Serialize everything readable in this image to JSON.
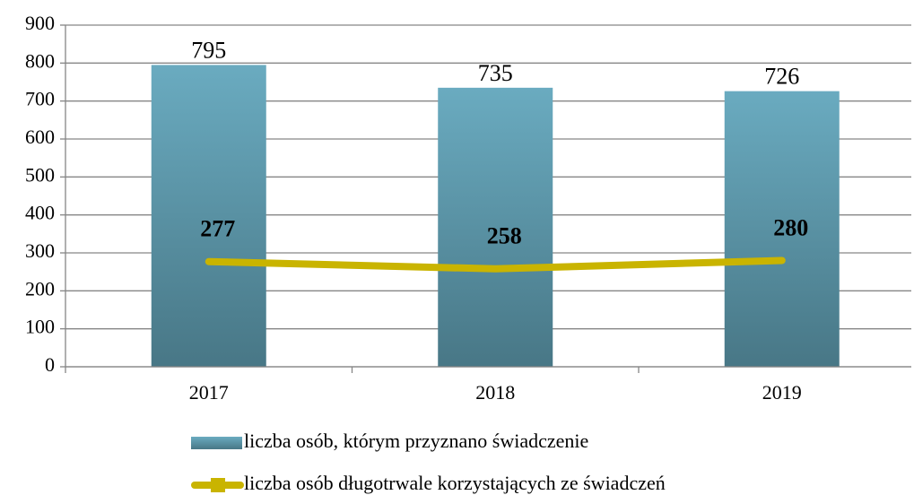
{
  "chart_data": {
    "type": "bar",
    "categories": [
      "2017",
      "2018",
      "2019"
    ],
    "series": [
      {
        "name": "liczba osób, którym przyznano świadczenie",
        "type": "bar",
        "color": "#5e9bb0",
        "values": [
          795,
          735,
          726
        ]
      },
      {
        "name": "liczba osób długotrwale korzystających ze świadczeń",
        "type": "line",
        "color": "#c9b400",
        "values": [
          277,
          258,
          280
        ]
      }
    ],
    "ylim": [
      0,
      900
    ],
    "yticks": [
      0,
      100,
      200,
      300,
      400,
      500,
      600,
      700,
      800,
      900
    ],
    "grid": true,
    "legend": "bottom"
  }
}
